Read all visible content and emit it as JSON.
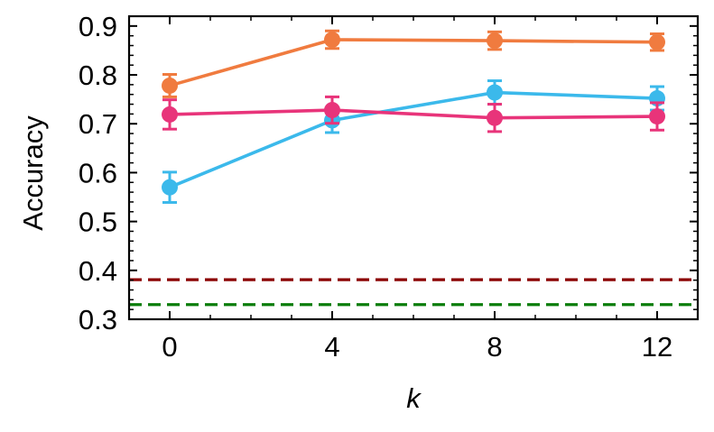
{
  "chart_data": {
    "type": "line",
    "xlabel": "k",
    "ylabel": "Accuracy",
    "xlim": [
      -1,
      13
    ],
    "ylim": [
      0.3,
      0.92
    ],
    "x_ticks": [
      0,
      4,
      8,
      12
    ],
    "x_tick_labels": [
      "0",
      "4",
      "8",
      "12"
    ],
    "y_ticks": [
      0.3,
      0.4,
      0.5,
      0.6,
      0.7,
      0.8,
      0.9
    ],
    "y_tick_labels": [
      "0.3",
      "0.4",
      "0.5",
      "0.6",
      "0.7",
      "0.8",
      "0.9"
    ],
    "grid": false,
    "x": [
      0,
      4,
      8,
      12
    ],
    "series": [
      {
        "color": "#F07B3F",
        "values": [
          0.778,
          0.872,
          0.87,
          0.867
        ],
        "errors": [
          0.023,
          0.018,
          0.018,
          0.017
        ]
      },
      {
        "color": "#3BB9EB",
        "values": [
          0.57,
          0.707,
          0.764,
          0.752
        ],
        "errors": [
          0.031,
          0.025,
          0.024,
          0.024
        ]
      },
      {
        "color": "#E8347A",
        "values": [
          0.719,
          0.728,
          0.712,
          0.715
        ],
        "errors": [
          0.03,
          0.027,
          0.028,
          0.028
        ]
      }
    ],
    "hlines": [
      {
        "value": 0.381,
        "color": "#8B0000",
        "style": "dashed"
      },
      {
        "value": 0.33,
        "color": "#0A7D0A",
        "style": "dashed"
      }
    ]
  }
}
